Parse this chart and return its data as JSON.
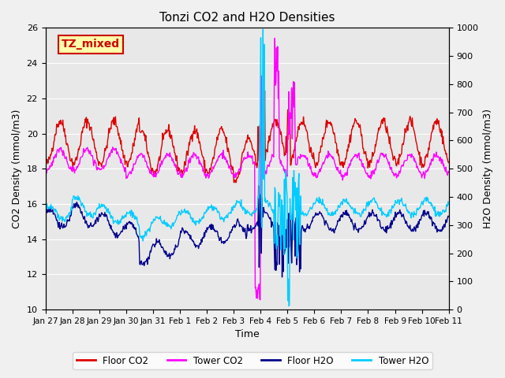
{
  "title": "Tonzi CO2 and H2O Densities",
  "xlabel": "Time",
  "ylabel_left": "CO2 Density (mmol/m3)",
  "ylabel_right": "H2O Density (mmol/m3)",
  "ylim_left": [
    10,
    26
  ],
  "ylim_right": [
    0,
    1000
  ],
  "yticks_left": [
    10,
    12,
    14,
    16,
    18,
    20,
    22,
    24,
    26
  ],
  "yticks_right": [
    0,
    100,
    200,
    300,
    400,
    500,
    600,
    700,
    800,
    900,
    1000
  ],
  "xtick_labels": [
    "Jan 27",
    "Jan 28",
    "Jan 29",
    "Jan 30",
    "Jan 31",
    "Feb 1",
    "Feb 2",
    "Feb 3",
    "Feb 4",
    "Feb 5",
    "Feb 6",
    "Feb 7",
    "Feb 8",
    "Feb 9",
    "Feb 10",
    "Feb 11"
  ],
  "annotation_text": "TZ_mixed",
  "annotation_facecolor": "#ffffaa",
  "annotation_edgecolor": "#cc0000",
  "background_color": "#e8e8e8",
  "floor_co2_color": "#dd0000",
  "tower_co2_color": "#ff00ff",
  "floor_h2o_color": "#00008b",
  "tower_h2o_color": "#00ccff",
  "linewidth": 1.0,
  "figsize": [
    6.4,
    4.8
  ],
  "dpi": 100
}
